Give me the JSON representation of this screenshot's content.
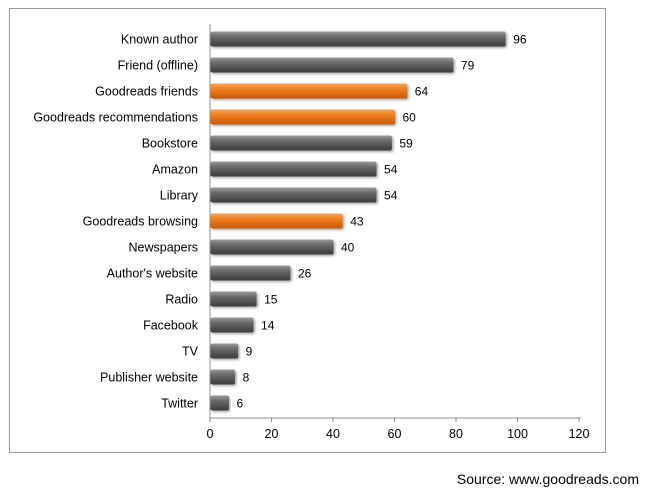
{
  "chart_data": {
    "type": "bar",
    "orientation": "horizontal",
    "categories": [
      "Known author",
      "Friend (offline)",
      "Goodreads friends",
      "Goodreads recommendations",
      "Bookstore",
      "Amazon",
      "Library",
      "Goodreads browsing",
      "Newspapers",
      "Author's website",
      "Radio",
      "Facebook",
      "TV",
      "Publisher website",
      "Twitter"
    ],
    "values": [
      96,
      79,
      64,
      60,
      59,
      54,
      54,
      43,
      40,
      26,
      15,
      14,
      9,
      8,
      6
    ],
    "highlighted": [
      false,
      false,
      true,
      true,
      false,
      false,
      false,
      true,
      false,
      false,
      false,
      false,
      false,
      false,
      false
    ],
    "colors": {
      "default_bar": "#595959",
      "highlight_bar": "#ed7d1e"
    },
    "xlim": [
      0,
      120
    ],
    "xticks": [
      0,
      20,
      40,
      60,
      80,
      100,
      120
    ],
    "grid": false,
    "legend": "none",
    "data_labels": true
  },
  "source": "Source: www.goodreads.com"
}
